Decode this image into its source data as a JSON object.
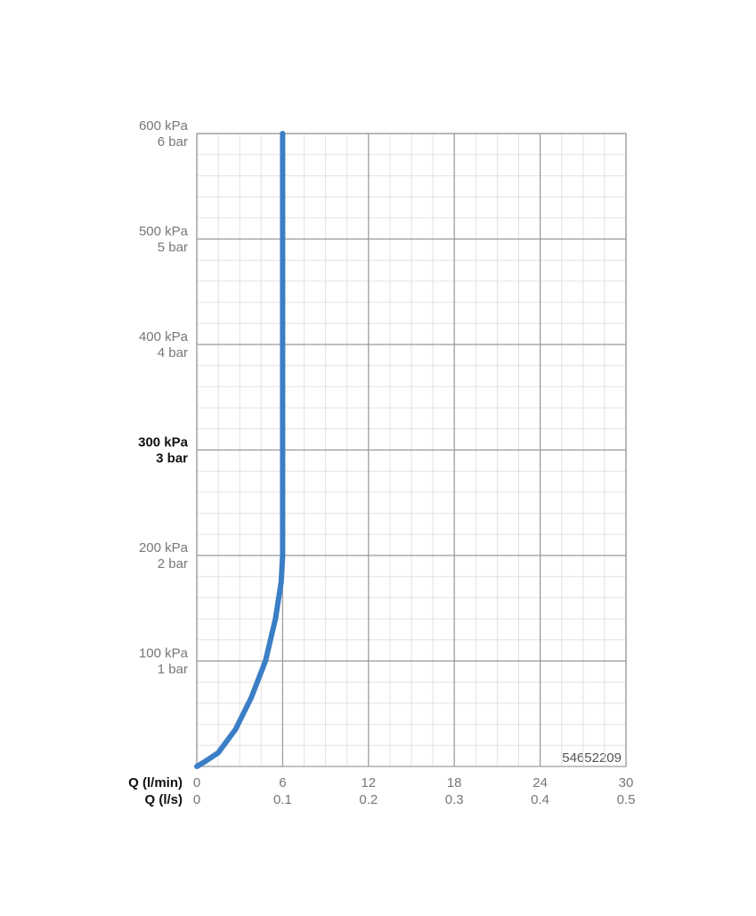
{
  "chart_data": {
    "type": "line",
    "xlabel": "Q (l/min)",
    "x2label": "Q (l/s)",
    "annotation": "54652209",
    "xlim": [
      0,
      30
    ],
    "xticks": [
      0,
      6,
      12,
      18,
      24,
      30
    ],
    "x2lim": [
      0,
      0.5
    ],
    "x2ticks": [
      0,
      0.1,
      0.2,
      0.3,
      0.4,
      0.5
    ],
    "ylim": [
      0,
      600
    ],
    "yticks": [
      {
        "value": 100,
        "label": "100 kPa"
      },
      {
        "value": 200,
        "label": "200 kPa"
      },
      {
        "value": 300,
        "label": "300 kPa"
      },
      {
        "value": 400,
        "label": "400 kPa"
      },
      {
        "value": 500,
        "label": "500 kPa"
      },
      {
        "value": 600,
        "label": "600 kPa"
      }
    ],
    "y2lim": [
      0,
      6
    ],
    "y2ticks": [
      {
        "value": 1,
        "label": "1 bar"
      },
      {
        "value": 2,
        "label": "2 bar"
      },
      {
        "value": 3,
        "label": "3 bar"
      },
      {
        "value": 4,
        "label": "4 bar"
      },
      {
        "value": 5,
        "label": "5 bar"
      },
      {
        "value": 6,
        "label": "6 bar"
      }
    ],
    "bold_ytick": 300,
    "grid": true,
    "minor_xstep": 1.5,
    "minor_ystep": 20,
    "series": [
      {
        "name": "54652209",
        "color": "#3a7ec6",
        "x": [
          0,
          0.5,
          1.5,
          2.7,
          3.8,
          4.8,
          5.5,
          5.9,
          6,
          6
        ],
        "values": [
          0,
          4,
          13,
          35,
          65,
          100,
          140,
          175,
          200,
          600
        ]
      }
    ]
  }
}
